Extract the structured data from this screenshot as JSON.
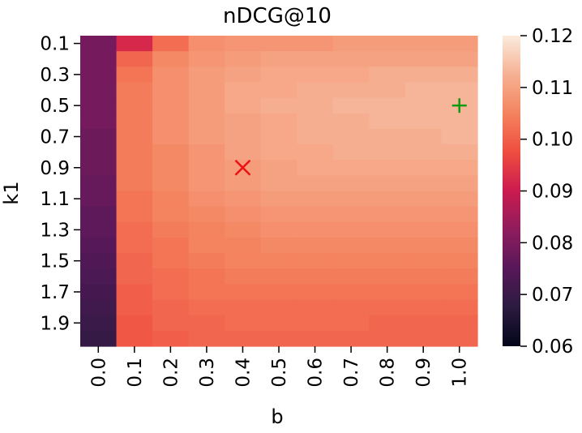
{
  "chart_data": {
    "type": "heatmap",
    "title": "nDCG@10",
    "xlabel": "b",
    "ylabel": "k1",
    "x": [
      0.0,
      0.1,
      0.2,
      0.3,
      0.4,
      0.5,
      0.6,
      0.7,
      0.8,
      0.9,
      1.0
    ],
    "y": [
      0.1,
      0.2,
      0.3,
      0.4,
      0.5,
      0.6,
      0.7,
      0.8,
      0.9,
      1.0,
      1.1,
      1.2,
      1.3,
      1.4,
      1.5,
      1.6,
      1.7,
      1.8,
      1.9,
      2.0
    ],
    "x_tick_labels": [
      "0.0",
      "0.1",
      "0.2",
      "0.3",
      "0.4",
      "0.5",
      "0.6",
      "0.7",
      "0.8",
      "0.9",
      "1.0"
    ],
    "y_tick_labels": [
      "0.1",
      "0.3",
      "0.5",
      "0.7",
      "0.9",
      "1.1",
      "1.3",
      "1.5",
      "1.7",
      "1.9"
    ],
    "colorbar": {
      "range": [
        0.06,
        0.12
      ],
      "tick_labels": [
        "0.06",
        "0.07",
        "0.08",
        "0.09",
        "0.10",
        "0.11",
        "0.12"
      ],
      "colormap": "rocket"
    },
    "values": [
      [
        0.079,
        0.092,
        0.102,
        0.107,
        0.108,
        0.108,
        0.108,
        0.109,
        0.109,
        0.109,
        0.109
      ],
      [
        0.079,
        0.101,
        0.106,
        0.108,
        0.109,
        0.11,
        0.11,
        0.11,
        0.11,
        0.11,
        0.11
      ],
      [
        0.079,
        0.103,
        0.107,
        0.109,
        0.11,
        0.111,
        0.111,
        0.111,
        0.112,
        0.112,
        0.112
      ],
      [
        0.079,
        0.104,
        0.107,
        0.109,
        0.111,
        0.111,
        0.112,
        0.112,
        0.112,
        0.113,
        0.113
      ],
      [
        0.079,
        0.104,
        0.107,
        0.109,
        0.111,
        0.112,
        0.112,
        0.113,
        0.113,
        0.113,
        0.113
      ],
      [
        0.079,
        0.104,
        0.107,
        0.109,
        0.11,
        0.111,
        0.112,
        0.112,
        0.113,
        0.113,
        0.113
      ],
      [
        0.078,
        0.104,
        0.107,
        0.109,
        0.11,
        0.111,
        0.112,
        0.112,
        0.112,
        0.112,
        0.113
      ],
      [
        0.078,
        0.104,
        0.106,
        0.108,
        0.11,
        0.111,
        0.111,
        0.112,
        0.112,
        0.112,
        0.112
      ],
      [
        0.078,
        0.104,
        0.106,
        0.108,
        0.109,
        0.11,
        0.111,
        0.111,
        0.111,
        0.111,
        0.111
      ],
      [
        0.077,
        0.104,
        0.106,
        0.108,
        0.109,
        0.11,
        0.11,
        0.11,
        0.11,
        0.11,
        0.11
      ],
      [
        0.077,
        0.103,
        0.105,
        0.107,
        0.108,
        0.109,
        0.109,
        0.109,
        0.109,
        0.109,
        0.109
      ],
      [
        0.076,
        0.103,
        0.105,
        0.106,
        0.107,
        0.108,
        0.108,
        0.108,
        0.108,
        0.108,
        0.108
      ],
      [
        0.076,
        0.102,
        0.104,
        0.105,
        0.106,
        0.107,
        0.107,
        0.107,
        0.107,
        0.107,
        0.107
      ],
      [
        0.075,
        0.102,
        0.103,
        0.105,
        0.105,
        0.106,
        0.106,
        0.106,
        0.106,
        0.106,
        0.106
      ],
      [
        0.074,
        0.101,
        0.103,
        0.104,
        0.105,
        0.105,
        0.105,
        0.105,
        0.105,
        0.105,
        0.105
      ],
      [
        0.073,
        0.101,
        0.102,
        0.103,
        0.104,
        0.104,
        0.104,
        0.104,
        0.104,
        0.104,
        0.104
      ],
      [
        0.072,
        0.1,
        0.102,
        0.103,
        0.103,
        0.103,
        0.103,
        0.103,
        0.103,
        0.103,
        0.103
      ],
      [
        0.071,
        0.1,
        0.101,
        0.102,
        0.102,
        0.102,
        0.102,
        0.102,
        0.102,
        0.102,
        0.102
      ],
      [
        0.07,
        0.099,
        0.101,
        0.101,
        0.102,
        0.102,
        0.102,
        0.102,
        0.101,
        0.101,
        0.101
      ],
      [
        0.069,
        0.099,
        0.1,
        0.101,
        0.101,
        0.101,
        0.101,
        0.101,
        0.101,
        0.101,
        0.101
      ]
    ],
    "markers": [
      {
        "symbol": "x",
        "b": 0.4,
        "k1": 0.9,
        "color": "#ee1111"
      },
      {
        "symbol": "+",
        "b": 1.0,
        "k1": 0.5,
        "color": "#119911"
      }
    ],
    "grid": false
  }
}
